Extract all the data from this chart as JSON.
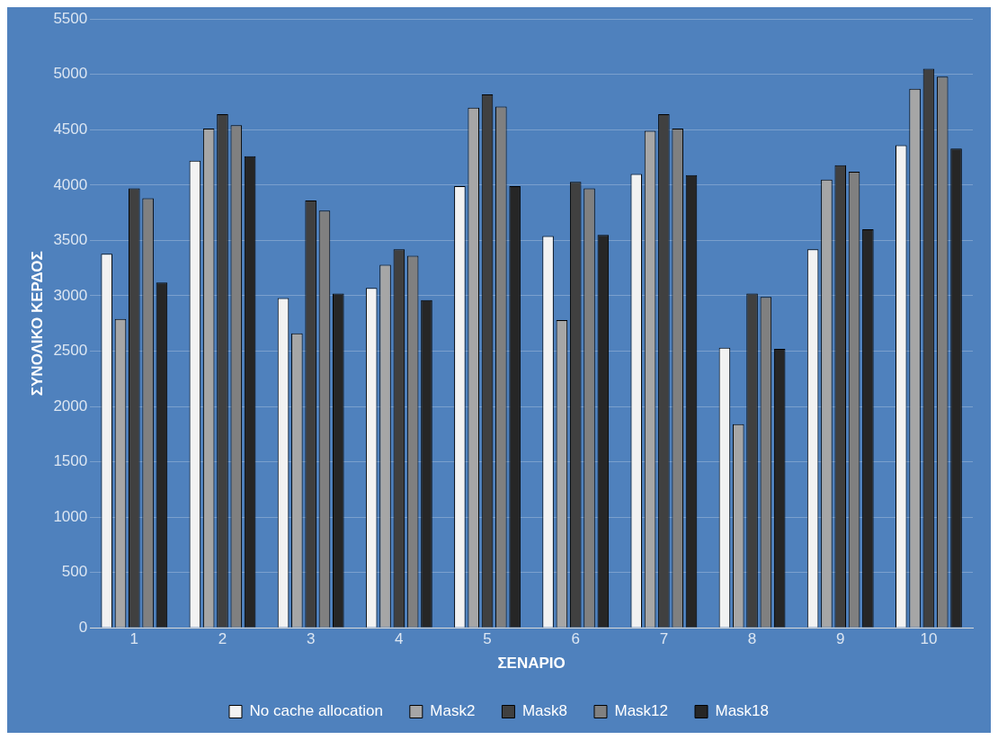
{
  "chart_data": {
    "type": "bar",
    "xlabel": "ΣΕΝΑΡΙΟ",
    "ylabel": "ΣΥΝΟΛΙΚΟ ΚΕΡΔΟΣ",
    "categories": [
      "1",
      "2",
      "3",
      "4",
      "5",
      "6",
      "7",
      "8",
      "9",
      "10"
    ],
    "series": [
      {
        "name": "No cache allocation",
        "color": "#f2f2f2",
        "values": [
          3380,
          4220,
          2980,
          3070,
          3990,
          3540,
          4100,
          2530,
          3420,
          4360
        ]
      },
      {
        "name": "Mask2",
        "color": "#a6a6a6",
        "values": [
          2790,
          4510,
          2660,
          3280,
          4700,
          2780,
          4490,
          1840,
          4050,
          4870
        ]
      },
      {
        "name": "Mask8",
        "color": "#404040",
        "values": [
          3970,
          4640,
          3860,
          3420,
          4820,
          4030,
          4640,
          3020,
          4180,
          5050
        ]
      },
      {
        "name": "Mask12",
        "color": "#808080",
        "values": [
          3880,
          4540,
          3770,
          3360,
          4710,
          3970,
          4510,
          2990,
          4120,
          4980
        ]
      },
      {
        "name": "Mask18",
        "color": "#262626",
        "values": [
          3120,
          4260,
          3020,
          2960,
          3990,
          3550,
          4090,
          2520,
          3600,
          4330
        ]
      }
    ],
    "ylim": [
      0,
      5500
    ],
    "yticks": [
      0,
      500,
      1000,
      1500,
      2000,
      2500,
      3000,
      3500,
      4000,
      4500,
      5000,
      5500
    ],
    "grid": "y",
    "legend": "bottom"
  }
}
